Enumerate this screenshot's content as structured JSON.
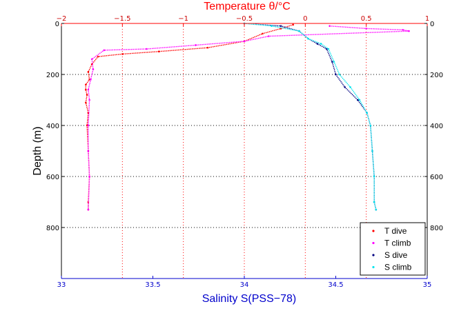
{
  "chart_data": {
    "type": "scatter",
    "xlabel_top": "Temperature θ/°C",
    "xlabel_bottom": "Salinity S(PSS−78)",
    "ylabel": "Depth (m)",
    "temperature_axis": {
      "range": [
        -2,
        1
      ],
      "ticks": [
        -2,
        -1.5,
        -1,
        -0.5,
        0,
        0.5,
        1
      ],
      "tick_labels": [
        "−2",
        "−1.5",
        "−1",
        "−0.5",
        "0",
        "0.5",
        "1"
      ],
      "color": "#cc0000"
    },
    "salinity_axis": {
      "range": [
        33,
        35
      ],
      "ticks": [
        33,
        33.5,
        34,
        34.5,
        35
      ],
      "tick_labels": [
        "33",
        "33.5",
        "34",
        "34.5",
        "35"
      ],
      "color": "#0000cc"
    },
    "depth_axis": {
      "range": [
        0,
        1000
      ],
      "reversed": true,
      "ticks": [
        0,
        200,
        400,
        600,
        800
      ],
      "tick_labels": [
        "0",
        "200",
        "400",
        "600",
        "800"
      ]
    },
    "grid": "dotted",
    "legend_position": "bottom-right",
    "series": [
      {
        "name": "T dive",
        "variable": "temperature",
        "color": "#ff0000",
        "x": [
          -0.1,
          -0.2,
          -0.35,
          -0.5,
          -0.8,
          -1.2,
          -1.5,
          -1.7,
          -1.75,
          -1.78,
          -1.77,
          -1.8,
          -1.8,
          -1.79,
          -1.8,
          -1.78,
          -1.79,
          -1.78,
          -1.77,
          -1.78,
          -1.78
        ],
        "y": [
          5,
          20,
          40,
          70,
          95,
          110,
          120,
          130,
          160,
          190,
          220,
          240,
          260,
          280,
          310,
          350,
          400,
          500,
          600,
          700,
          730
        ]
      },
      {
        "name": "T climb",
        "variable": "temperature",
        "color": "#ff00ff",
        "x": [
          0.2,
          0.5,
          0.8,
          0.85,
          -0.3,
          -0.5,
          -0.9,
          -1.3,
          -1.65,
          -1.75,
          -1.74,
          -1.76,
          -1.78,
          -1.77,
          -1.78,
          -1.78,
          -1.77,
          -1.78
        ],
        "y": [
          10,
          20,
          25,
          30,
          50,
          70,
          85,
          100,
          105,
          140,
          180,
          220,
          260,
          300,
          400,
          500,
          600,
          730
        ]
      },
      {
        "name": "S dive",
        "variable": "salinity",
        "color": "#000080",
        "x": [
          34.0,
          34.2,
          34.3,
          34.35,
          34.4,
          34.45,
          34.48,
          34.5,
          34.55,
          34.62,
          34.67,
          34.69,
          34.7,
          34.71,
          34.71,
          34.72
        ],
        "y": [
          0,
          10,
          30,
          60,
          80,
          100,
          150,
          200,
          250,
          300,
          350,
          400,
          500,
          600,
          700,
          730
        ]
      },
      {
        "name": "S climb",
        "variable": "salinity",
        "color": "#00e5ee",
        "x": [
          34.0,
          34.15,
          34.3,
          34.35,
          34.42,
          34.46,
          34.49,
          34.52,
          34.58,
          34.63,
          34.67,
          34.69,
          34.7,
          34.71,
          34.71,
          34.72
        ],
        "y": [
          0,
          10,
          30,
          60,
          80,
          100,
          150,
          200,
          250,
          300,
          350,
          400,
          500,
          600,
          700,
          730
        ]
      }
    ]
  }
}
